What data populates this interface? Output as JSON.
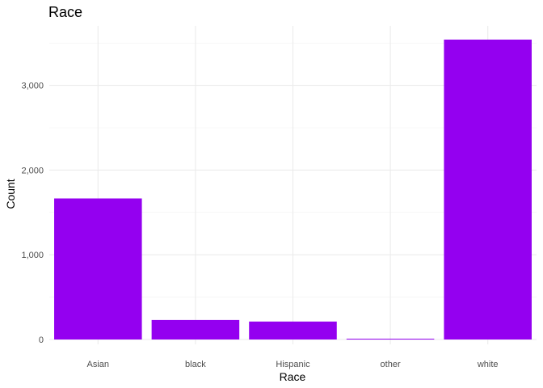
{
  "chart_data": {
    "type": "bar",
    "title": "Race",
    "xlabel": "Race",
    "ylabel": "Count",
    "categories": [
      "Asian",
      "black",
      "Hispanic",
      "other",
      "white"
    ],
    "values": [
      1665,
      230,
      212,
      8,
      3540
    ],
    "ylim": [
      0,
      3540
    ],
    "yticks": [
      0,
      1000,
      2000,
      3000
    ],
    "ytick_labels": [
      "0",
      "1,000",
      "2,000",
      "3,000"
    ],
    "bar_color": "#9400f0",
    "grid": true,
    "legend": "none"
  }
}
